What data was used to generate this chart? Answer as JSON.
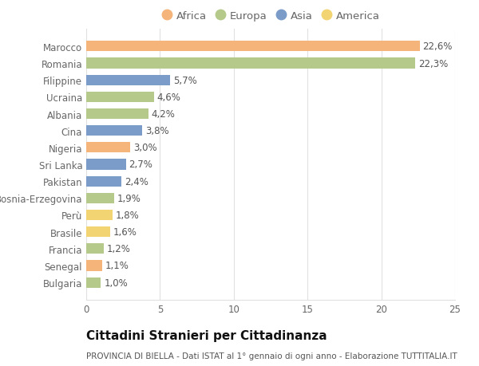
{
  "categories": [
    "Marocco",
    "Romania",
    "Filippine",
    "Ucraina",
    "Albania",
    "Cina",
    "Nigeria",
    "Sri Lanka",
    "Pakistan",
    "Bosnia-Erzegovina",
    "Perù",
    "Brasile",
    "Francia",
    "Senegal",
    "Bulgaria"
  ],
  "values": [
    22.6,
    22.3,
    5.7,
    4.6,
    4.2,
    3.8,
    3.0,
    2.7,
    2.4,
    1.9,
    1.8,
    1.6,
    1.2,
    1.1,
    1.0
  ],
  "labels": [
    "22,6%",
    "22,3%",
    "5,7%",
    "4,6%",
    "4,2%",
    "3,8%",
    "3,0%",
    "2,7%",
    "2,4%",
    "1,9%",
    "1,8%",
    "1,6%",
    "1,2%",
    "1,1%",
    "1,0%"
  ],
  "continents": [
    "Africa",
    "Europa",
    "Asia",
    "Europa",
    "Europa",
    "Asia",
    "Africa",
    "Asia",
    "Asia",
    "Europa",
    "America",
    "America",
    "Europa",
    "Africa",
    "Europa"
  ],
  "continent_colors": {
    "Africa": "#F4B47A",
    "Europa": "#B5C98A",
    "Asia": "#7B9CC8",
    "America": "#F2D472"
  },
  "legend_order": [
    "Africa",
    "Europa",
    "Asia",
    "America"
  ],
  "title": "Cittadini Stranieri per Cittadinanza",
  "subtitle": "PROVINCIA DI BIELLA - Dati ISTAT al 1° gennaio di ogni anno - Elaborazione TUTTITALIA.IT",
  "xlim": [
    0,
    25
  ],
  "xticks": [
    0,
    5,
    10,
    15,
    20,
    25
  ],
  "bg_color": "#ffffff",
  "grid_color": "#e0e0e0",
  "bar_height": 0.62,
  "label_fontsize": 8.5,
  "tick_fontsize": 8.5,
  "title_fontsize": 11,
  "subtitle_fontsize": 7.5
}
